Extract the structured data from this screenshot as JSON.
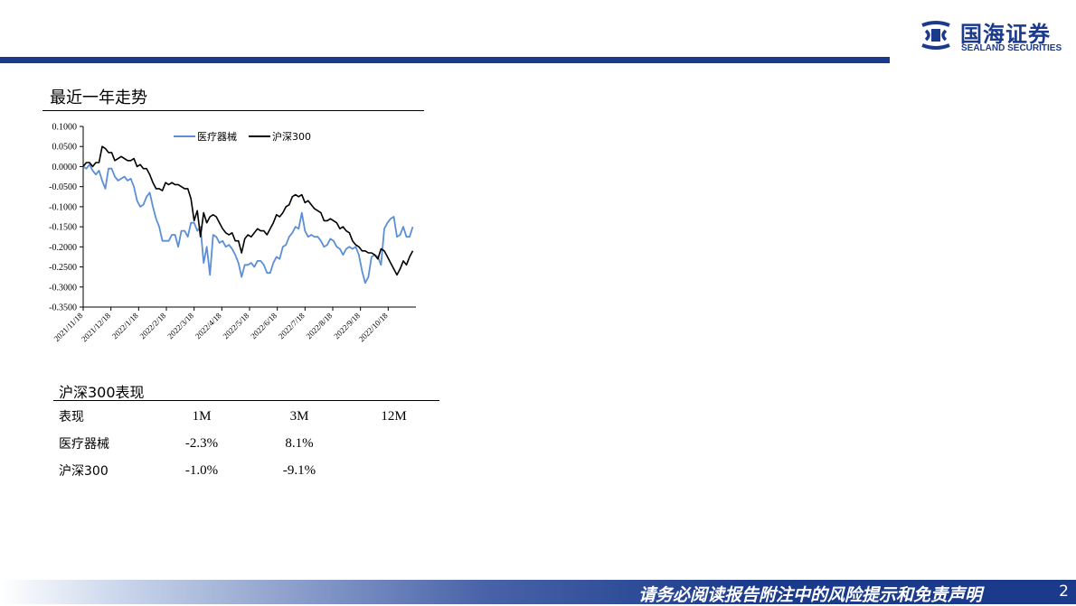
{
  "header": {
    "logo_cn": "国海证券",
    "logo_en": "SEALAND SECURITIES",
    "brand_color": "#1b3a8c"
  },
  "chart_section": {
    "title": "最近一年走势"
  },
  "chart_data": {
    "type": "line",
    "title": "",
    "xlabel": "",
    "ylabel": "",
    "ylim": [
      -0.35,
      0.1
    ],
    "yticks": [
      0.1,
      0.05,
      0.0,
      -0.05,
      -0.1,
      -0.15,
      -0.2,
      -0.25,
      -0.3,
      -0.35
    ],
    "ytick_labels": [
      "0.1000",
      "0.0500",
      "0.0000",
      "-0.0500",
      "-0.1000",
      "-0.1500",
      "-0.2000",
      "-0.2500",
      "-0.3000",
      "-0.3500"
    ],
    "xtick_labels": [
      "2021/11/18",
      "2021/12/18",
      "2022/1/18",
      "2022/2/18",
      "2022/3/18",
      "2022/4/18",
      "2022/5/18",
      "2022/6/18",
      "2022/7/18",
      "2022/8/18",
      "2022/9/18",
      "2022/10/18"
    ],
    "legend": "top",
    "grid": false,
    "series": [
      {
        "name": "医疗器械",
        "color": "#5b8fd6",
        "points": [
          [
            0,
            0.0
          ],
          [
            2,
            -0.005
          ],
          [
            4,
            0.005
          ],
          [
            6,
            -0.01
          ],
          [
            8,
            -0.02
          ],
          [
            10,
            -0.01
          ],
          [
            12,
            -0.035
          ],
          [
            14,
            -0.055
          ],
          [
            16,
            -0.005
          ],
          [
            18,
            -0.005
          ],
          [
            20,
            -0.025
          ],
          [
            22,
            -0.035
          ],
          [
            24,
            -0.03
          ],
          [
            26,
            -0.025
          ],
          [
            28,
            -0.035
          ],
          [
            30,
            -0.03
          ],
          [
            32,
            -0.05
          ],
          [
            34,
            -0.085
          ],
          [
            36,
            -0.1
          ],
          [
            38,
            -0.095
          ],
          [
            40,
            -0.075
          ],
          [
            42,
            -0.065
          ],
          [
            44,
            -0.1
          ],
          [
            46,
            -0.13
          ],
          [
            48,
            -0.15
          ],
          [
            50,
            -0.185
          ],
          [
            52,
            -0.185
          ],
          [
            54,
            -0.185
          ],
          [
            56,
            -0.17
          ],
          [
            58,
            -0.17
          ],
          [
            60,
            -0.2
          ],
          [
            62,
            -0.16
          ],
          [
            64,
            -0.16
          ],
          [
            66,
            -0.175
          ],
          [
            68,
            -0.14
          ],
          [
            70,
            -0.14
          ],
          [
            72,
            -0.16
          ],
          [
            74,
            -0.15
          ],
          [
            76,
            -0.24
          ],
          [
            78,
            -0.2
          ],
          [
            80,
            -0.27
          ],
          [
            82,
            -0.17
          ],
          [
            84,
            -0.175
          ],
          [
            86,
            -0.19
          ],
          [
            88,
            -0.185
          ],
          [
            90,
            -0.2
          ],
          [
            92,
            -0.195
          ],
          [
            94,
            -0.205
          ],
          [
            96,
            -0.22
          ],
          [
            98,
            -0.24
          ],
          [
            100,
            -0.275
          ],
          [
            102,
            -0.245
          ],
          [
            104,
            -0.245
          ],
          [
            106,
            -0.24
          ],
          [
            108,
            -0.25
          ],
          [
            110,
            -0.235
          ],
          [
            112,
            -0.235
          ],
          [
            114,
            -0.245
          ],
          [
            116,
            -0.265
          ],
          [
            118,
            -0.265
          ],
          [
            120,
            -0.24
          ],
          [
            122,
            -0.225
          ],
          [
            124,
            -0.23
          ],
          [
            126,
            -0.2
          ],
          [
            128,
            -0.195
          ],
          [
            130,
            -0.175
          ],
          [
            132,
            -0.165
          ],
          [
            134,
            -0.15
          ],
          [
            136,
            -0.155
          ],
          [
            138,
            -0.115
          ],
          [
            140,
            -0.16
          ],
          [
            142,
            -0.175
          ],
          [
            144,
            -0.17
          ],
          [
            146,
            -0.175
          ],
          [
            148,
            -0.175
          ],
          [
            150,
            -0.185
          ],
          [
            152,
            -0.2
          ],
          [
            154,
            -0.195
          ],
          [
            156,
            -0.18
          ],
          [
            158,
            -0.185
          ],
          [
            160,
            -0.2
          ],
          [
            162,
            -0.205
          ],
          [
            164,
            -0.22
          ],
          [
            166,
            -0.205
          ],
          [
            168,
            -0.2
          ],
          [
            170,
            -0.205
          ],
          [
            172,
            -0.2
          ],
          [
            174,
            -0.22
          ],
          [
            176,
            -0.26
          ],
          [
            178,
            -0.29
          ],
          [
            180,
            -0.275
          ],
          [
            182,
            -0.225
          ],
          [
            184,
            -0.22
          ],
          [
            186,
            -0.225
          ],
          [
            188,
            -0.245
          ],
          [
            190,
            -0.155
          ],
          [
            192,
            -0.14
          ],
          [
            194,
            -0.13
          ],
          [
            196,
            -0.125
          ],
          [
            198,
            -0.175
          ],
          [
            200,
            -0.17
          ],
          [
            202,
            -0.15
          ],
          [
            204,
            -0.175
          ],
          [
            206,
            -0.175
          ],
          [
            208,
            -0.15
          ]
        ]
      },
      {
        "name": "沪深300",
        "color": "#000000",
        "points": [
          [
            0,
            0.0
          ],
          [
            2,
            0.01
          ],
          [
            4,
            0.01
          ],
          [
            6,
            0.0
          ],
          [
            8,
            0.01
          ],
          [
            10,
            0.01
          ],
          [
            12,
            0.05
          ],
          [
            14,
            0.045
          ],
          [
            16,
            0.035
          ],
          [
            18,
            0.035
          ],
          [
            20,
            0.015
          ],
          [
            22,
            0.02
          ],
          [
            24,
            0.025
          ],
          [
            26,
            0.02
          ],
          [
            28,
            0.015
          ],
          [
            30,
            0.015
          ],
          [
            32,
            0.02
          ],
          [
            34,
            0.0
          ],
          [
            36,
            0.005
          ],
          [
            38,
            -0.005
          ],
          [
            40,
            -0.005
          ],
          [
            42,
            -0.02
          ],
          [
            44,
            -0.04
          ],
          [
            46,
            -0.055
          ],
          [
            48,
            -0.055
          ],
          [
            50,
            -0.06
          ],
          [
            52,
            -0.04
          ],
          [
            54,
            -0.045
          ],
          [
            56,
            -0.04
          ],
          [
            58,
            -0.045
          ],
          [
            60,
            -0.045
          ],
          [
            62,
            -0.05
          ],
          [
            64,
            -0.055
          ],
          [
            66,
            -0.055
          ],
          [
            68,
            -0.08
          ],
          [
            70,
            -0.135
          ],
          [
            72,
            -0.11
          ],
          [
            74,
            -0.175
          ],
          [
            76,
            -0.115
          ],
          [
            78,
            -0.14
          ],
          [
            80,
            -0.125
          ],
          [
            82,
            -0.12
          ],
          [
            84,
            -0.125
          ],
          [
            86,
            -0.14
          ],
          [
            88,
            -0.155
          ],
          [
            90,
            -0.165
          ],
          [
            92,
            -0.17
          ],
          [
            94,
            -0.165
          ],
          [
            96,
            -0.185
          ],
          [
            98,
            -0.185
          ],
          [
            100,
            -0.215
          ],
          [
            102,
            -0.18
          ],
          [
            104,
            -0.17
          ],
          [
            106,
            -0.175
          ],
          [
            108,
            -0.165
          ],
          [
            110,
            -0.155
          ],
          [
            112,
            -0.16
          ],
          [
            114,
            -0.16
          ],
          [
            116,
            -0.17
          ],
          [
            118,
            -0.155
          ],
          [
            120,
            -0.14
          ],
          [
            122,
            -0.12
          ],
          [
            124,
            -0.125
          ],
          [
            126,
            -0.115
          ],
          [
            128,
            -0.1
          ],
          [
            130,
            -0.095
          ],
          [
            132,
            -0.075
          ],
          [
            134,
            -0.07
          ],
          [
            136,
            -0.075
          ],
          [
            138,
            -0.07
          ],
          [
            140,
            -0.09
          ],
          [
            142,
            -0.085
          ],
          [
            144,
            -0.095
          ],
          [
            146,
            -0.105
          ],
          [
            148,
            -0.11
          ],
          [
            150,
            -0.115
          ],
          [
            152,
            -0.135
          ],
          [
            154,
            -0.135
          ],
          [
            156,
            -0.13
          ],
          [
            158,
            -0.135
          ],
          [
            160,
            -0.14
          ],
          [
            162,
            -0.155
          ],
          [
            164,
            -0.15
          ],
          [
            166,
            -0.16
          ],
          [
            168,
            -0.165
          ],
          [
            170,
            -0.185
          ],
          [
            172,
            -0.195
          ],
          [
            174,
            -0.2
          ],
          [
            176,
            -0.21
          ],
          [
            178,
            -0.21
          ],
          [
            180,
            -0.215
          ],
          [
            182,
            -0.215
          ],
          [
            184,
            -0.22
          ],
          [
            186,
            -0.23
          ],
          [
            188,
            -0.205
          ],
          [
            190,
            -0.21
          ],
          [
            192,
            -0.225
          ],
          [
            194,
            -0.24
          ],
          [
            196,
            -0.255
          ],
          [
            198,
            -0.27
          ],
          [
            200,
            -0.255
          ],
          [
            202,
            -0.235
          ],
          [
            204,
            -0.245
          ],
          [
            206,
            -0.225
          ],
          [
            208,
            -0.21
          ]
        ]
      }
    ]
  },
  "table_section": {
    "title": "沪深300表现",
    "headers": [
      "表现",
      "1M",
      "3M",
      "12M"
    ],
    "rows": [
      [
        "医疗器械",
        "-2.3%",
        "8.1%",
        ""
      ],
      [
        "沪深300",
        "-1.0%",
        "-9.1%",
        ""
      ]
    ]
  },
  "footer": {
    "disclaimer": "请务必阅读报告附注中的风险提示和免责声明",
    "page_number": "2"
  }
}
